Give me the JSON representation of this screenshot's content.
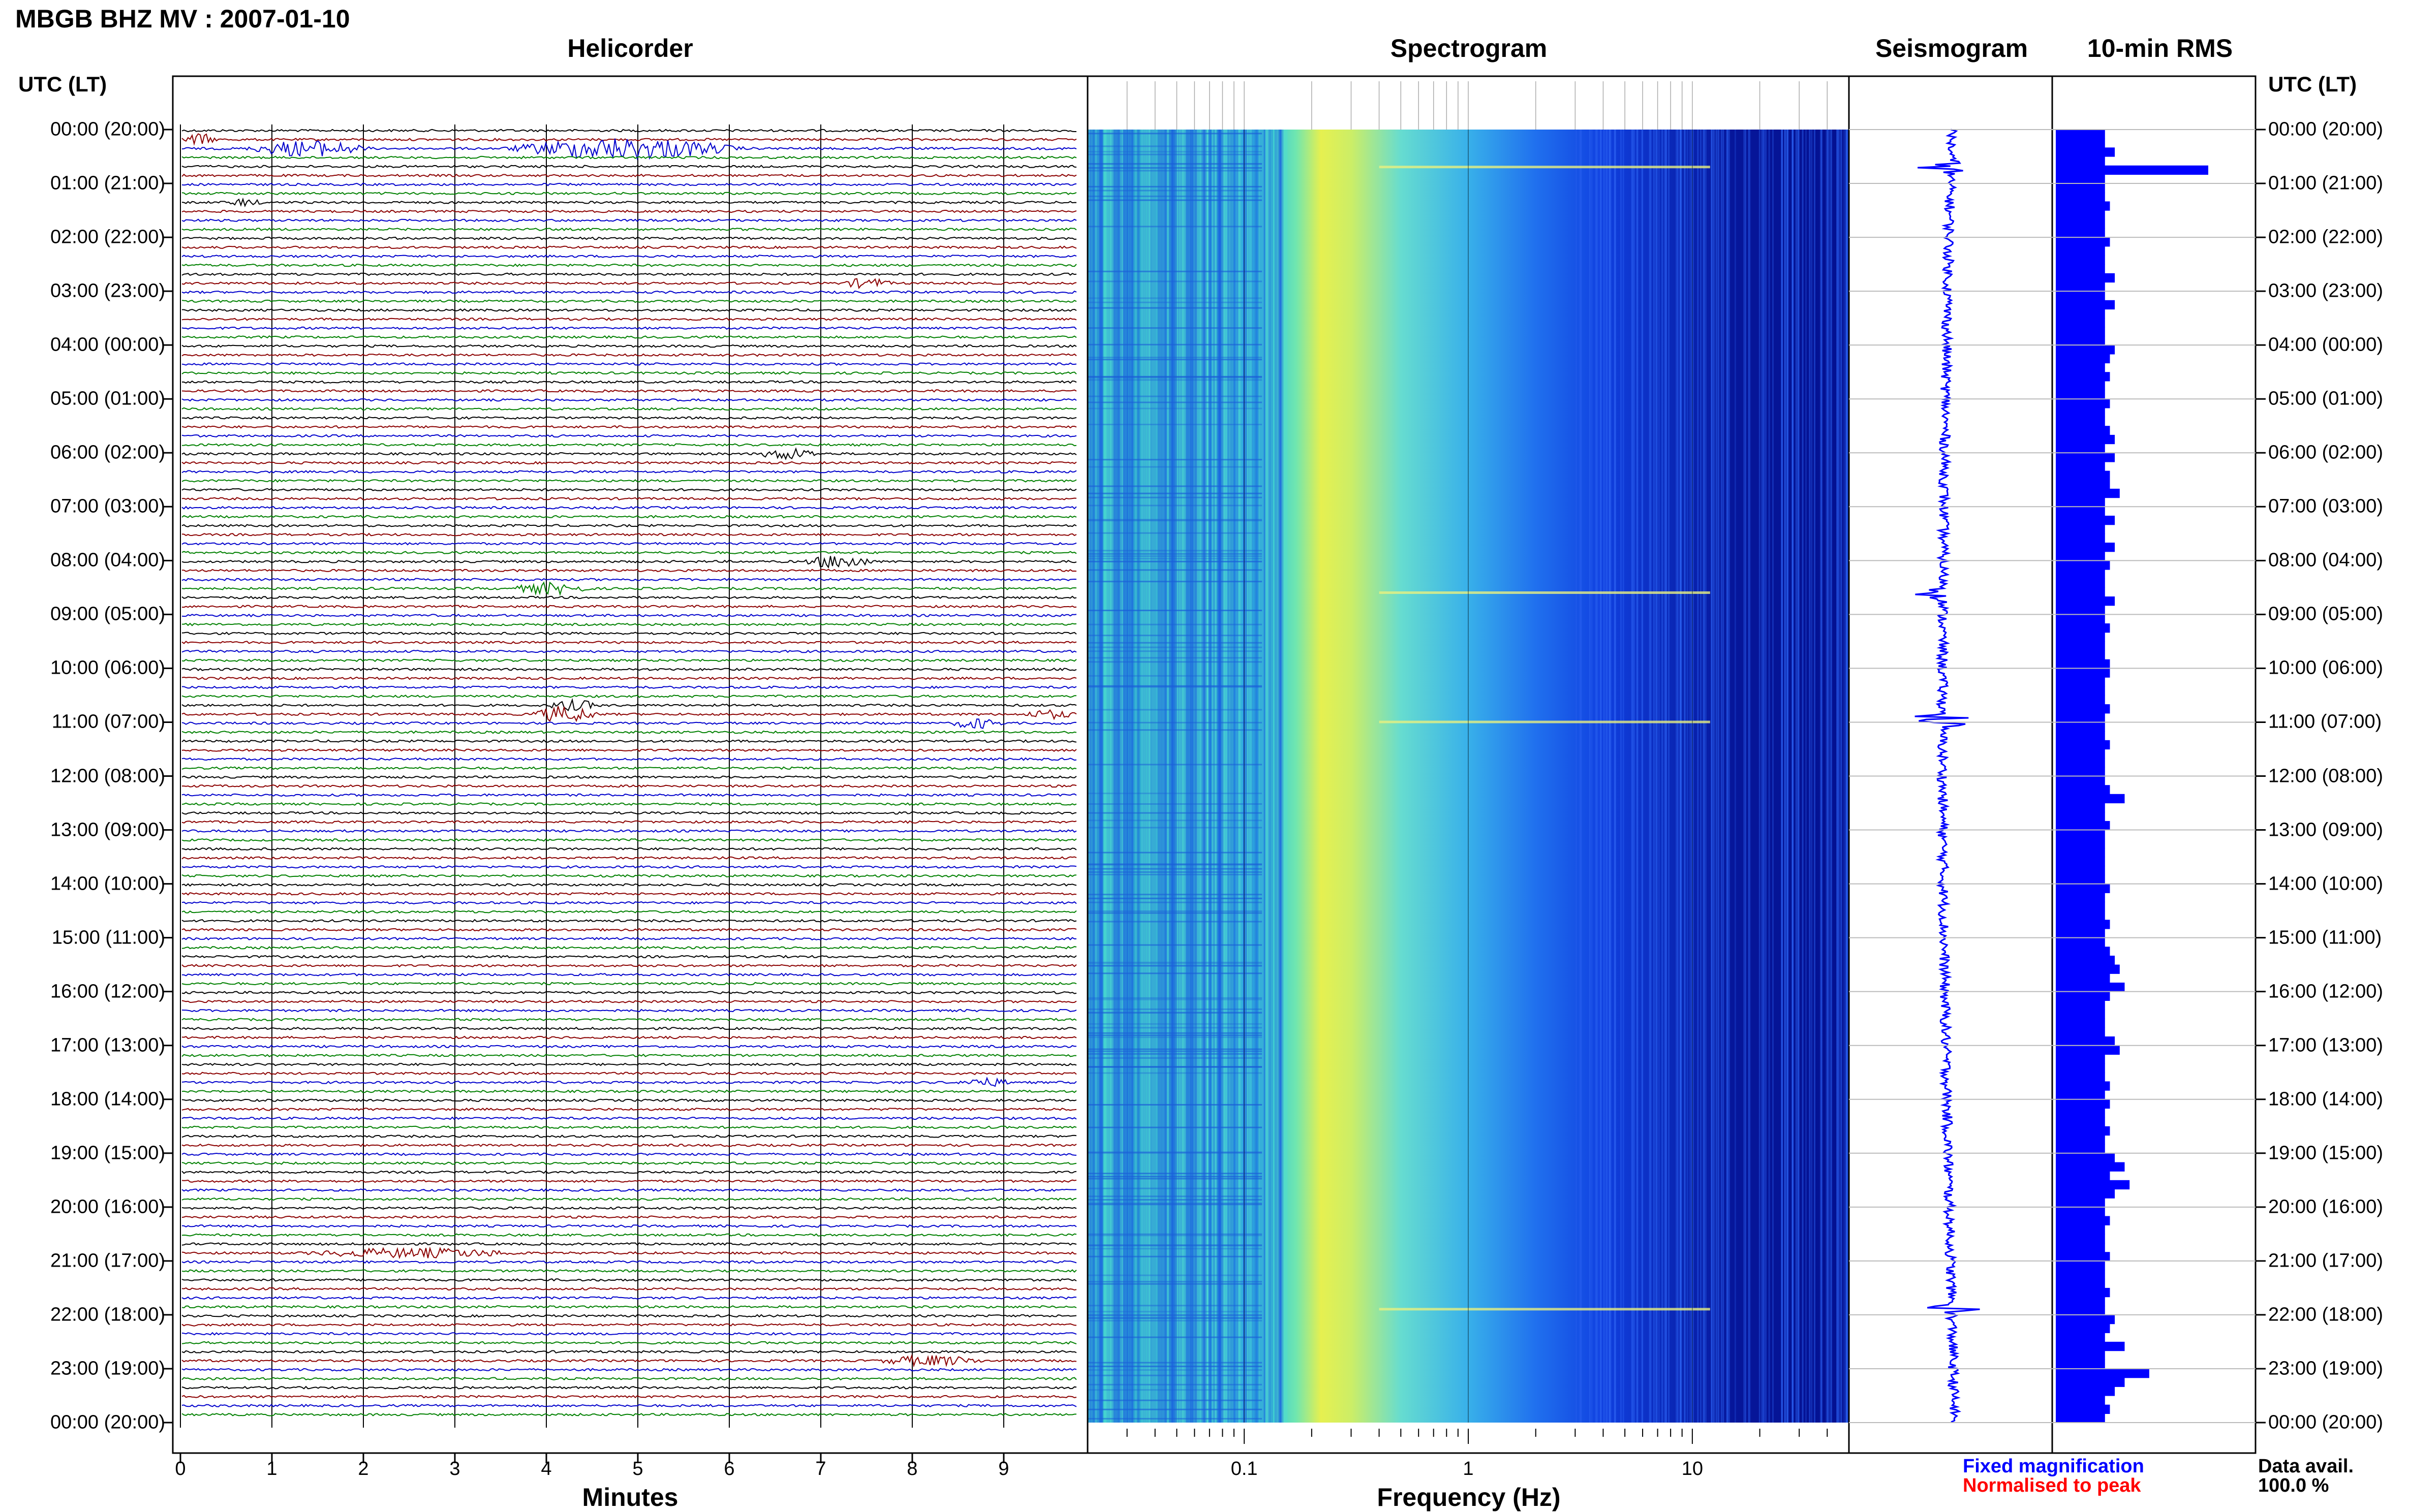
{
  "header": {
    "title": "MBGB BHZ MV : 2007-01-10"
  },
  "panels": {
    "helicorder": "Helicorder",
    "spectrogram": "Spectrogram",
    "seismogram": "Seismogram",
    "rms": "10-min RMS"
  },
  "time_axis": {
    "heading": "UTC (LT)",
    "hours": [
      "00:00 (20:00)",
      "01:00 (21:00)",
      "02:00 (22:00)",
      "03:00 (23:00)",
      "04:00 (00:00)",
      "05:00 (01:00)",
      "06:00 (02:00)",
      "07:00 (03:00)",
      "08:00 (04:00)",
      "09:00 (05:00)",
      "10:00 (06:00)",
      "11:00 (07:00)",
      "12:00 (08:00)",
      "13:00 (09:00)",
      "14:00 (10:00)",
      "15:00 (11:00)",
      "16:00 (12:00)",
      "17:00 (13:00)",
      "18:00 (14:00)",
      "19:00 (15:00)",
      "20:00 (16:00)",
      "21:00 (17:00)",
      "22:00 (18:00)",
      "23:00 (19:00)",
      "00:00 (20:00)"
    ]
  },
  "footer": {
    "helicorder_xlabel": "Minutes",
    "spectrogram_xlabel": "Frequency (Hz)",
    "legend_fixed": "Fixed magnification",
    "legend_normalised": "Normalised to peak",
    "data_avail_label": "Data avail.",
    "data_avail_value": "100.0 %"
  },
  "colors": {
    "trace_cycle": [
      "#000000",
      "#8b0000",
      "#0000cc",
      "#008000"
    ],
    "seismogram": "#0000ff",
    "rms": "#0000ff",
    "legend_fixed": "#0000ff",
    "legend_normalised": "#ff0000",
    "spectrogram_scale": [
      "#00008b",
      "#0000ff",
      "#00a0ff",
      "#40e0d0",
      "#80ff80",
      "#ffff00"
    ]
  },
  "chart_data": [
    {
      "type": "line",
      "title": "Helicorder",
      "xlabel": "Minutes",
      "xticks": [
        "0",
        "1",
        "2",
        "3",
        "4",
        "5",
        "6",
        "7",
        "8",
        "9"
      ],
      "xlim": [
        0,
        10
      ],
      "rows_per_hour": 6,
      "hours": 24,
      "events": [
        {
          "row": 1,
          "start_min": 0.0,
          "end_min": 0.4,
          "amp": 1.2
        },
        {
          "row": 2,
          "start_min": 0.7,
          "end_min": 2.1,
          "amp": 1.6
        },
        {
          "row": 2,
          "start_min": 3.5,
          "end_min": 6.2,
          "amp": 2.2
        },
        {
          "row": 8,
          "start_min": 0.5,
          "end_min": 0.9,
          "amp": 0.7
        },
        {
          "row": 17,
          "start_min": 7.2,
          "end_min": 7.8,
          "amp": 0.9
        },
        {
          "row": 36,
          "start_min": 6.3,
          "end_min": 7.0,
          "amp": 1.1
        },
        {
          "row": 48,
          "start_min": 6.8,
          "end_min": 7.6,
          "amp": 1.3
        },
        {
          "row": 51,
          "start_min": 3.6,
          "end_min": 4.5,
          "amp": 1.1
        },
        {
          "row": 64,
          "start_min": 4.0,
          "end_min": 4.6,
          "amp": 1.0
        },
        {
          "row": 65,
          "start_min": 3.8,
          "end_min": 4.6,
          "amp": 1.6
        },
        {
          "row": 66,
          "start_min": 8.4,
          "end_min": 9.0,
          "amp": 1.0
        },
        {
          "row": 65,
          "start_min": 9.2,
          "end_min": 9.8,
          "amp": 0.8
        },
        {
          "row": 106,
          "start_min": 8.5,
          "end_min": 9.1,
          "amp": 0.8
        },
        {
          "row": 125,
          "start_min": 1.3,
          "end_min": 3.8,
          "amp": 0.9
        },
        {
          "row": 137,
          "start_min": 7.6,
          "end_min": 8.8,
          "amp": 1.0
        }
      ]
    },
    {
      "type": "heatmap",
      "title": "Spectrogram",
      "xlabel": "Frequency (Hz)",
      "x_scale": "log",
      "xlim": [
        0.02,
        50
      ],
      "xticks": [
        0.1,
        1,
        10
      ],
      "xtick_labels": [
        "0.1",
        "1",
        "10"
      ],
      "peak_band_hz": [
        0.2,
        0.4
      ],
      "low_energy_above_hz": 10
    },
    {
      "type": "line",
      "title": "Seismogram",
      "events_at_hour": [
        0.7,
        8.6,
        10.9,
        11.0,
        21.9
      ]
    },
    {
      "type": "bar",
      "title": "10-min RMS",
      "interval_minutes": 10,
      "values": [
        1.0,
        1.0,
        1.2,
        1.0,
        3.1,
        1.0,
        1.0,
        1.0,
        1.1,
        1.0,
        1.0,
        1.0,
        1.1,
        1.0,
        1.0,
        1.0,
        1.2,
        1.0,
        1.0,
        1.2,
        1.0,
        1.0,
        1.0,
        1.0,
        1.2,
        1.1,
        1.0,
        1.1,
        1.0,
        1.0,
        1.1,
        1.0,
        1.0,
        1.1,
        1.2,
        1.0,
        1.2,
        1.0,
        1.1,
        1.1,
        1.3,
        1.0,
        1.0,
        1.2,
        1.0,
        1.0,
        1.2,
        1.0,
        1.1,
        1.0,
        1.0,
        1.0,
        1.2,
        1.0,
        1.0,
        1.1,
        1.0,
        1.0,
        1.0,
        1.1,
        1.1,
        1.0,
        1.0,
        1.0,
        1.1,
        1.0,
        1.0,
        1.0,
        1.1,
        1.0,
        1.0,
        1.0,
        1.0,
        1.1,
        1.4,
        1.0,
        1.0,
        1.1,
        1.0,
        1.0,
        1.0,
        1.0,
        1.0,
        1.0,
        1.1,
        1.0,
        1.0,
        1.0,
        1.1,
        1.0,
        1.0,
        1.1,
        1.2,
        1.3,
        1.1,
        1.4,
        1.1,
        1.0,
        1.0,
        1.0,
        1.0,
        1.2,
        1.3,
        1.0,
        1.0,
        1.0,
        1.1,
        1.0,
        1.1,
        1.0,
        1.0,
        1.1,
        1.0,
        1.0,
        1.2,
        1.4,
        1.1,
        1.5,
        1.2,
        1.0,
        1.0,
        1.1,
        1.0,
        1.0,
        1.0,
        1.1,
        1.0,
        1.0,
        1.0,
        1.1,
        1.0,
        1.0,
        1.2,
        1.1,
        1.0,
        1.4,
        1.0,
        1.0,
        1.9,
        1.4,
        1.2,
        1.0,
        1.1,
        1.0
      ]
    }
  ]
}
